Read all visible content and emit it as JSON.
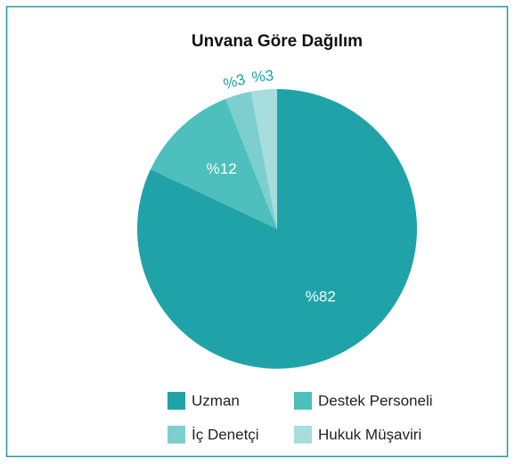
{
  "chart_data": {
    "type": "pie",
    "title": "Unvana Göre Dağılım",
    "categories": [
      "Uzman",
      "Destek Personeli",
      "İç Denetçi",
      "Hukuk Müşaviri"
    ],
    "values": [
      82,
      12,
      3,
      3
    ],
    "value_labels": [
      "%82",
      "%12",
      "%3",
      "%3"
    ],
    "colors": [
      "#1fa3a8",
      "#4dbfbd",
      "#7dcfcf",
      "#a8dddd"
    ],
    "legend": "bottom"
  }
}
